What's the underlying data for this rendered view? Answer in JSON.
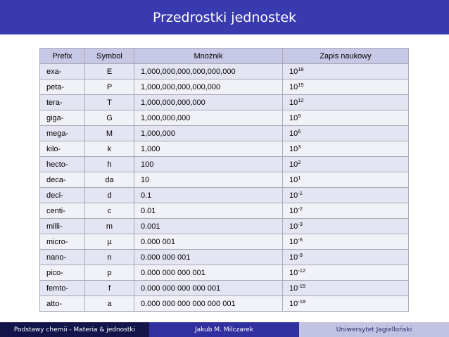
{
  "title": "Przedrostki jednostek",
  "table": {
    "headers": [
      "Prefix",
      "Symbol",
      "Mnożnik",
      "Zapis naukowy"
    ],
    "rows": [
      {
        "prefix": "exa-",
        "symbol": "E",
        "multiplier": "1,000,000,000,000,000,000",
        "sci_base": "10",
        "sci_exp": "18"
      },
      {
        "prefix": "peta-",
        "symbol": "P",
        "multiplier": "1,000,000,000,000,000",
        "sci_base": "10",
        "sci_exp": "15"
      },
      {
        "prefix": "tera-",
        "symbol": "T",
        "multiplier": "1,000,000,000,000",
        "sci_base": "10",
        "sci_exp": "12"
      },
      {
        "prefix": "giga-",
        "symbol": "G",
        "multiplier": "1,000,000,000",
        "sci_base": "10",
        "sci_exp": "9"
      },
      {
        "prefix": "mega-",
        "symbol": "M",
        "multiplier": "1,000,000",
        "sci_base": "10",
        "sci_exp": "6"
      },
      {
        "prefix": "kilo-",
        "symbol": "k",
        "multiplier": "1,000",
        "sci_base": "10",
        "sci_exp": "3"
      },
      {
        "prefix": "hecto-",
        "symbol": "h",
        "multiplier": "100",
        "sci_base": "10",
        "sci_exp": "2"
      },
      {
        "prefix": "deca-",
        "symbol": "da",
        "multiplier": "10",
        "sci_base": "10",
        "sci_exp": "1"
      },
      {
        "prefix": "deci-",
        "symbol": "d",
        "multiplier": "0.1",
        "sci_base": "10",
        "sci_exp": "-1"
      },
      {
        "prefix": "centi-",
        "symbol": "c",
        "multiplier": "0.01",
        "sci_base": "10",
        "sci_exp": "-2"
      },
      {
        "prefix": "milli-",
        "symbol": "m",
        "multiplier": "0.001",
        "sci_base": "10",
        "sci_exp": "-3"
      },
      {
        "prefix": "micro-",
        "symbol": "µ",
        "multiplier": "0.000 001",
        "sci_base": "10",
        "sci_exp": "-6"
      },
      {
        "prefix": "nano-",
        "symbol": "n",
        "multiplier": "0.000 000 001",
        "sci_base": "10",
        "sci_exp": "-9"
      },
      {
        "prefix": "pico-",
        "symbol": "p",
        "multiplier": "0.000 000 000 001",
        "sci_base": "10",
        "sci_exp": "-12"
      },
      {
        "prefix": "femto-",
        "symbol": "f",
        "multiplier": "0.000 000 000 000 001",
        "sci_base": "10",
        "sci_exp": "-15"
      },
      {
        "prefix": "atto-",
        "symbol": "a",
        "multiplier": "0.000 000 000 000 000 001",
        "sci_base": "10",
        "sci_exp": "-18"
      }
    ]
  },
  "footer": {
    "left": "Podstawy chemii - Materia & jednostki",
    "center": "Jakub M. Milczarek",
    "right": "Uniwersytet Jagielloński"
  },
  "colors": {
    "title_bg": "#3a3ab0",
    "header_bg": "#c7c7e6",
    "row_odd": "#e4e4f2",
    "row_even": "#f1f1f8",
    "footer_left_bg": "#14144a",
    "footer_center_bg": "#3030a0",
    "footer_right_bg": "#c2c2e2"
  }
}
